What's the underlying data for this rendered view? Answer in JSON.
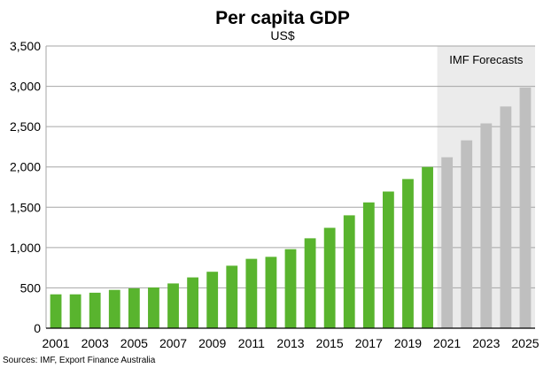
{
  "chart_data": {
    "type": "bar",
    "title": "Per capita GDP",
    "subtitle": "US$",
    "xlabel": "",
    "ylabel": "",
    "categories": [
      "2001",
      "2002",
      "2003",
      "2004",
      "2005",
      "2006",
      "2007",
      "2008",
      "2009",
      "2010",
      "2011",
      "2012",
      "2013",
      "2014",
      "2015",
      "2016",
      "2017",
      "2018",
      "2019",
      "2020",
      "2021",
      "2022",
      "2023",
      "2024",
      "2025"
    ],
    "x_tick_labels": [
      "2001",
      "",
      "2003",
      "",
      "2005",
      "",
      "2007",
      "",
      "2009",
      "",
      "2011",
      "",
      "2013",
      "",
      "2015",
      "",
      "2017",
      "",
      "2019",
      "",
      "2021",
      "",
      "2023",
      "",
      "2025"
    ],
    "values": [
      420,
      420,
      440,
      475,
      495,
      505,
      555,
      630,
      700,
      775,
      860,
      885,
      980,
      1115,
      1245,
      1400,
      1560,
      1695,
      1850,
      2000,
      2120,
      2330,
      2540,
      2750,
      2985
    ],
    "forecast_from_index": 20,
    "ylim": [
      0,
      3500
    ],
    "y_ticks": [
      0,
      500,
      1000,
      1500,
      2000,
      2500,
      3000,
      3500
    ],
    "y_tick_labels": [
      "0",
      "500",
      "1,000",
      "1,500",
      "2,000",
      "2,500",
      "3,000",
      "3,500"
    ],
    "grid": true,
    "annotations": [
      {
        "text": "IMF Forecasts",
        "region": "forecast"
      }
    ],
    "source": "Sources: IMF, Export Finance Australia",
    "colors": {
      "actual": "#59b42e",
      "forecast": "#bfbfbf",
      "forecast_region": "#ebebeb",
      "grid": "#a6a6a6",
      "axis": "#000000"
    }
  }
}
